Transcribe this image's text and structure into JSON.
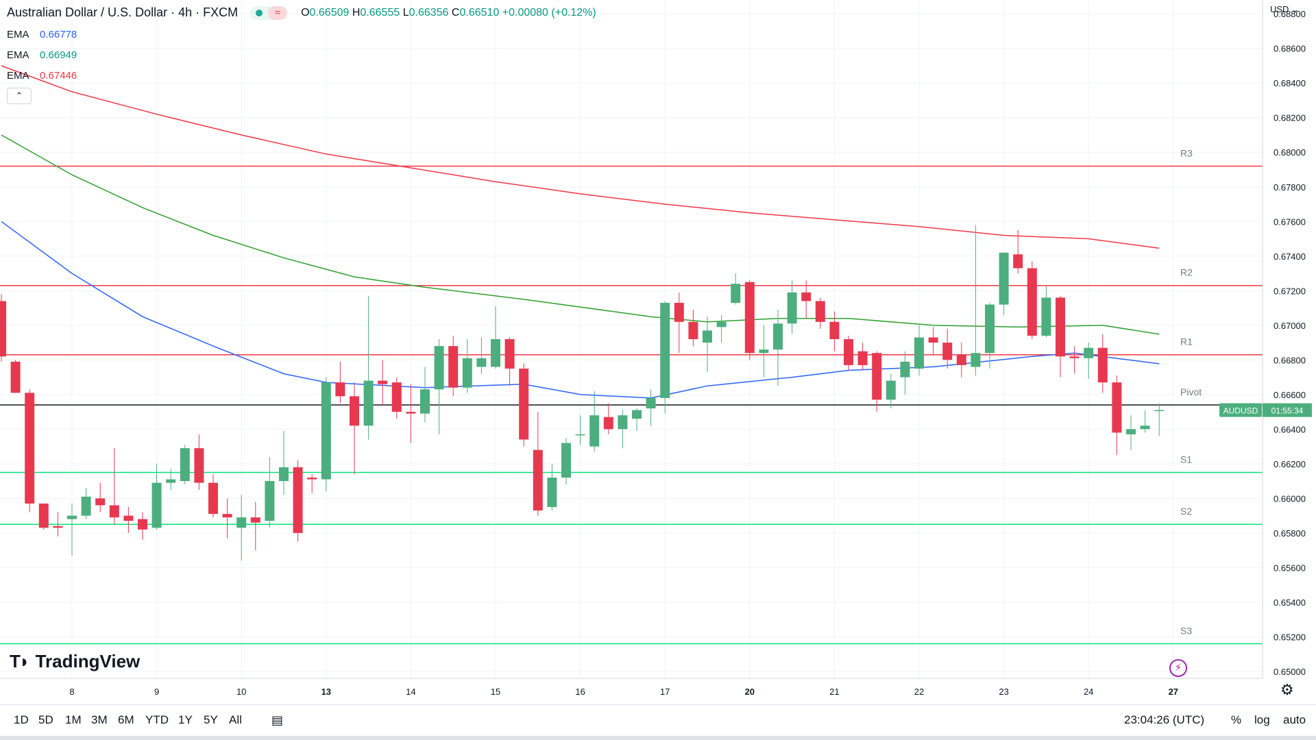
{
  "header": {
    "symbol_title": "Australian Dollar / U.S. Dollar · 4h · FXCM",
    "ohlc": {
      "o_label": "O",
      "o": "0.66509",
      "h_label": "H",
      "h": "0.66555",
      "l_label": "L",
      "l": "0.66356",
      "c_label": "C",
      "c": "0.66510",
      "change": "+0.00080 (+0.12%)"
    },
    "emas": [
      {
        "label": "EMA",
        "value": "0.66778",
        "color": "#2962ff"
      },
      {
        "label": "EMA",
        "value": "0.66949",
        "color": "#089981"
      },
      {
        "label": "EMA",
        "value": "0.67446",
        "color": "#f23645"
      }
    ],
    "collapse_icon": "chevron-up-icon"
  },
  "axis_currency": "USD",
  "price_tag": {
    "symbol": "AUDUSD",
    "countdown": "01:55:34"
  },
  "brand": "TradingView",
  "timeframes": [
    "1D",
    "5D",
    "1M",
    "3M",
    "6M",
    "YTD",
    "1Y",
    "5Y",
    "All"
  ],
  "clock": "23:04:26 (UTC)",
  "scale_options": [
    "%",
    "log",
    "auto"
  ],
  "colors": {
    "up": "#4cae7e",
    "down": "#e63950",
    "ema_fast": "#2962ff",
    "ema_mid": "#2ca02c",
    "ema_slow": "#f23645",
    "res": "#f23645",
    "sup": "#00e676",
    "pivot": "#131722"
  },
  "chart_data": {
    "type": "candlestick",
    "title": "Australian Dollar / U.S. Dollar · 4h · FXCM",
    "ylim": [
      0.6496,
      0.6888
    ],
    "y_ticks": [
      0.65,
      0.652,
      0.654,
      0.656,
      0.658,
      0.66,
      0.662,
      0.664,
      0.666,
      0.668,
      0.67,
      0.672,
      0.674,
      0.676,
      0.678,
      0.68,
      0.682,
      0.684,
      0.686,
      0.688
    ],
    "x_ticks": [
      {
        "label": "8",
        "idx": 5,
        "bold": false
      },
      {
        "label": "9",
        "idx": 11,
        "bold": false
      },
      {
        "label": "10",
        "idx": 17,
        "bold": false
      },
      {
        "label": "13",
        "idx": 23,
        "bold": true
      },
      {
        "label": "14",
        "idx": 29,
        "bold": false
      },
      {
        "label": "15",
        "idx": 35,
        "bold": false
      },
      {
        "label": "16",
        "idx": 41,
        "bold": false
      },
      {
        "label": "17",
        "idx": 47,
        "bold": false
      },
      {
        "label": "20",
        "idx": 53,
        "bold": true
      },
      {
        "label": "21",
        "idx": 59,
        "bold": false
      },
      {
        "label": "22",
        "idx": 65,
        "bold": false
      },
      {
        "label": "23",
        "idx": 71,
        "bold": false
      },
      {
        "label": "24",
        "idx": 77,
        "bold": false
      },
      {
        "label": "27",
        "idx": 83,
        "bold": true
      }
    ],
    "candles": [
      [
        0.6714,
        0.6718,
        0.6682,
        0.6679
      ],
      [
        0.6679,
        0.668,
        0.6661,
        0.6661
      ],
      [
        0.6661,
        0.6663,
        0.6597,
        0.6592
      ],
      [
        0.6597,
        0.6597,
        0.6583,
        0.6582
      ],
      [
        0.6584,
        0.6592,
        0.6583,
        0.6578
      ],
      [
        0.6588,
        0.6597,
        0.659,
        0.6567
      ],
      [
        0.659,
        0.6606,
        0.6601,
        0.6588
      ],
      [
        0.66,
        0.6609,
        0.6596,
        0.6592
      ],
      [
        0.6596,
        0.6629,
        0.6589,
        0.6585
      ],
      [
        0.659,
        0.6595,
        0.6587,
        0.658
      ],
      [
        0.6588,
        0.6592,
        0.6582,
        0.6576
      ],
      [
        0.6583,
        0.662,
        0.6609,
        0.6582
      ],
      [
        0.6609,
        0.6617,
        0.6611,
        0.6605
      ],
      [
        0.661,
        0.6631,
        0.6629,
        0.6608
      ],
      [
        0.6629,
        0.6637,
        0.6609,
        0.6605
      ],
      [
        0.6609,
        0.6614,
        0.6591,
        0.6589
      ],
      [
        0.6591,
        0.66,
        0.6589,
        0.6577
      ],
      [
        0.6583,
        0.6602,
        0.6589,
        0.6564
      ],
      [
        0.6589,
        0.6598,
        0.6586,
        0.657
      ],
      [
        0.6587,
        0.6624,
        0.661,
        0.6583
      ],
      [
        0.661,
        0.6639,
        0.6618,
        0.6602
      ],
      [
        0.6618,
        0.6622,
        0.658,
        0.6575
      ],
      [
        0.6612,
        0.6614,
        0.6611,
        0.6603
      ],
      [
        0.6611,
        0.667,
        0.6667,
        0.6604
      ],
      [
        0.6667,
        0.6679,
        0.6659,
        0.6655
      ],
      [
        0.6659,
        0.6667,
        0.6642,
        0.6614
      ],
      [
        0.6642,
        0.6717,
        0.6668,
        0.6634
      ],
      [
        0.6668,
        0.668,
        0.6666,
        0.6654
      ],
      [
        0.6667,
        0.667,
        0.665,
        0.6646
      ],
      [
        0.665,
        0.6666,
        0.6649,
        0.6632
      ],
      [
        0.6649,
        0.6676,
        0.6663,
        0.6644
      ],
      [
        0.6663,
        0.6692,
        0.6688,
        0.6637
      ],
      [
        0.6688,
        0.6694,
        0.6664,
        0.6659
      ],
      [
        0.6664,
        0.6692,
        0.6681,
        0.6661
      ],
      [
        0.6676,
        0.6693,
        0.6681,
        0.6672
      ],
      [
        0.6676,
        0.6711,
        0.6692,
        0.6675
      ],
      [
        0.6692,
        0.6693,
        0.6675,
        0.6665
      ],
      [
        0.6675,
        0.6678,
        0.6634,
        0.663
      ],
      [
        0.6628,
        0.665,
        0.6593,
        0.659
      ],
      [
        0.6595,
        0.662,
        0.6612,
        0.6593
      ],
      [
        0.6612,
        0.6635,
        0.6632,
        0.6608
      ],
      [
        0.6637,
        0.6648,
        0.6637,
        0.6631
      ],
      [
        0.663,
        0.6662,
        0.6648,
        0.6627
      ],
      [
        0.6647,
        0.6655,
        0.664,
        0.6637
      ],
      [
        0.664,
        0.6651,
        0.6648,
        0.6629
      ],
      [
        0.6646,
        0.6652,
        0.6651,
        0.6639
      ],
      [
        0.6652,
        0.6663,
        0.6658,
        0.6642
      ],
      [
        0.6658,
        0.6714,
        0.6713,
        0.6649
      ],
      [
        0.6713,
        0.6719,
        0.6702,
        0.6684
      ],
      [
        0.6702,
        0.6709,
        0.6692,
        0.6688
      ],
      [
        0.669,
        0.6705,
        0.6697,
        0.6673
      ],
      [
        0.6699,
        0.6706,
        0.6702,
        0.669
      ],
      [
        0.6713,
        0.673,
        0.6724,
        0.6712
      ],
      [
        0.6725,
        0.6726,
        0.6684,
        0.668
      ],
      [
        0.6684,
        0.67,
        0.6686,
        0.667
      ],
      [
        0.6686,
        0.6709,
        0.6701,
        0.6665
      ],
      [
        0.6701,
        0.6726,
        0.6719,
        0.6695
      ],
      [
        0.6719,
        0.6726,
        0.6714,
        0.6704
      ],
      [
        0.6714,
        0.6716,
        0.6702,
        0.6698
      ],
      [
        0.6702,
        0.6708,
        0.6692,
        0.6685
      ],
      [
        0.6692,
        0.6694,
        0.6677,
        0.6674
      ],
      [
        0.6685,
        0.669,
        0.6677,
        0.6674
      ],
      [
        0.6684,
        0.6685,
        0.6657,
        0.665
      ],
      [
        0.6657,
        0.6672,
        0.6668,
        0.6652
      ],
      [
        0.667,
        0.6685,
        0.6679,
        0.666
      ],
      [
        0.6675,
        0.67,
        0.6693,
        0.6671
      ],
      [
        0.6693,
        0.6699,
        0.669,
        0.6683
      ],
      [
        0.669,
        0.6698,
        0.668,
        0.6675
      ],
      [
        0.6683,
        0.669,
        0.6677,
        0.667
      ],
      [
        0.6676,
        0.6758,
        0.6684,
        0.6671
      ],
      [
        0.6684,
        0.6713,
        0.6712,
        0.6675
      ],
      [
        0.6712,
        0.6742,
        0.6742,
        0.6706
      ],
      [
        0.6741,
        0.6755,
        0.6733,
        0.673
      ],
      [
        0.6733,
        0.6737,
        0.6694,
        0.6692
      ],
      [
        0.6694,
        0.6723,
        0.6716,
        0.6693
      ],
      [
        0.6716,
        0.6717,
        0.6682,
        0.667
      ],
      [
        0.6682,
        0.6688,
        0.6681,
        0.6672
      ],
      [
        0.6681,
        0.669,
        0.6687,
        0.6669
      ],
      [
        0.6687,
        0.6695,
        0.6667,
        0.6661
      ],
      [
        0.6667,
        0.6671,
        0.6638,
        0.6625
      ],
      [
        0.6637,
        0.6648,
        0.664,
        0.6628
      ],
      [
        0.664,
        0.6651,
        0.6642,
        0.6638
      ],
      [
        0.6651,
        0.6655,
        0.6651,
        0.6636
      ]
    ],
    "ema_series": [
      {
        "name": "EMA (0.66778)",
        "color": "#2962ff",
        "points": [
          [
            0,
            0.676
          ],
          [
            5,
            0.673
          ],
          [
            10,
            0.6705
          ],
          [
            15,
            0.6688
          ],
          [
            20,
            0.6672
          ],
          [
            23,
            0.6667
          ],
          [
            30,
            0.6664
          ],
          [
            37,
            0.6666
          ],
          [
            41,
            0.666
          ],
          [
            46,
            0.6658
          ],
          [
            50,
            0.6665
          ],
          [
            56,
            0.667
          ],
          [
            60,
            0.6674
          ],
          [
            66,
            0.6676
          ],
          [
            73,
            0.6682
          ],
          [
            76,
            0.6684
          ],
          [
            82,
            0.66778
          ]
        ]
      },
      {
        "name": "EMA (0.66949)",
        "color": "#2ca02c",
        "points": [
          [
            0,
            0.681
          ],
          [
            5,
            0.6787
          ],
          [
            10,
            0.6768
          ],
          [
            15,
            0.6752
          ],
          [
            20,
            0.6739
          ],
          [
            25,
            0.6728
          ],
          [
            30,
            0.6722
          ],
          [
            37,
            0.6715
          ],
          [
            46,
            0.6705
          ],
          [
            50,
            0.6702
          ],
          [
            55,
            0.6704
          ],
          [
            60,
            0.6704
          ],
          [
            66,
            0.67
          ],
          [
            72,
            0.6699
          ],
          [
            78,
            0.67
          ],
          [
            82,
            0.66949
          ]
        ]
      },
      {
        "name": "EMA (0.67446)",
        "color": "#f23645",
        "points": [
          [
            0,
            0.685
          ],
          [
            5,
            0.6835
          ],
          [
            11,
            0.6822
          ],
          [
            17,
            0.681
          ],
          [
            23,
            0.6799
          ],
          [
            29,
            0.6791
          ],
          [
            35,
            0.6783
          ],
          [
            41,
            0.6776
          ],
          [
            47,
            0.677
          ],
          [
            53,
            0.6765
          ],
          [
            59,
            0.6761
          ],
          [
            65,
            0.6757
          ],
          [
            71,
            0.6752
          ],
          [
            77,
            0.675
          ],
          [
            82,
            0.67446
          ]
        ]
      }
    ],
    "levels": [
      {
        "label": "R3",
        "value": 0.6792,
        "kind": "res"
      },
      {
        "label": "R2",
        "value": 0.6723,
        "kind": "res"
      },
      {
        "label": "R1",
        "value": 0.6683,
        "kind": "res"
      },
      {
        "label": "Pivot",
        "value": 0.6654,
        "kind": "pivot"
      },
      {
        "label": "S1",
        "value": 0.6615,
        "kind": "sup"
      },
      {
        "label": "S2",
        "value": 0.6585,
        "kind": "sup"
      },
      {
        "label": "S3",
        "value": 0.6516,
        "kind": "sup"
      }
    ]
  }
}
